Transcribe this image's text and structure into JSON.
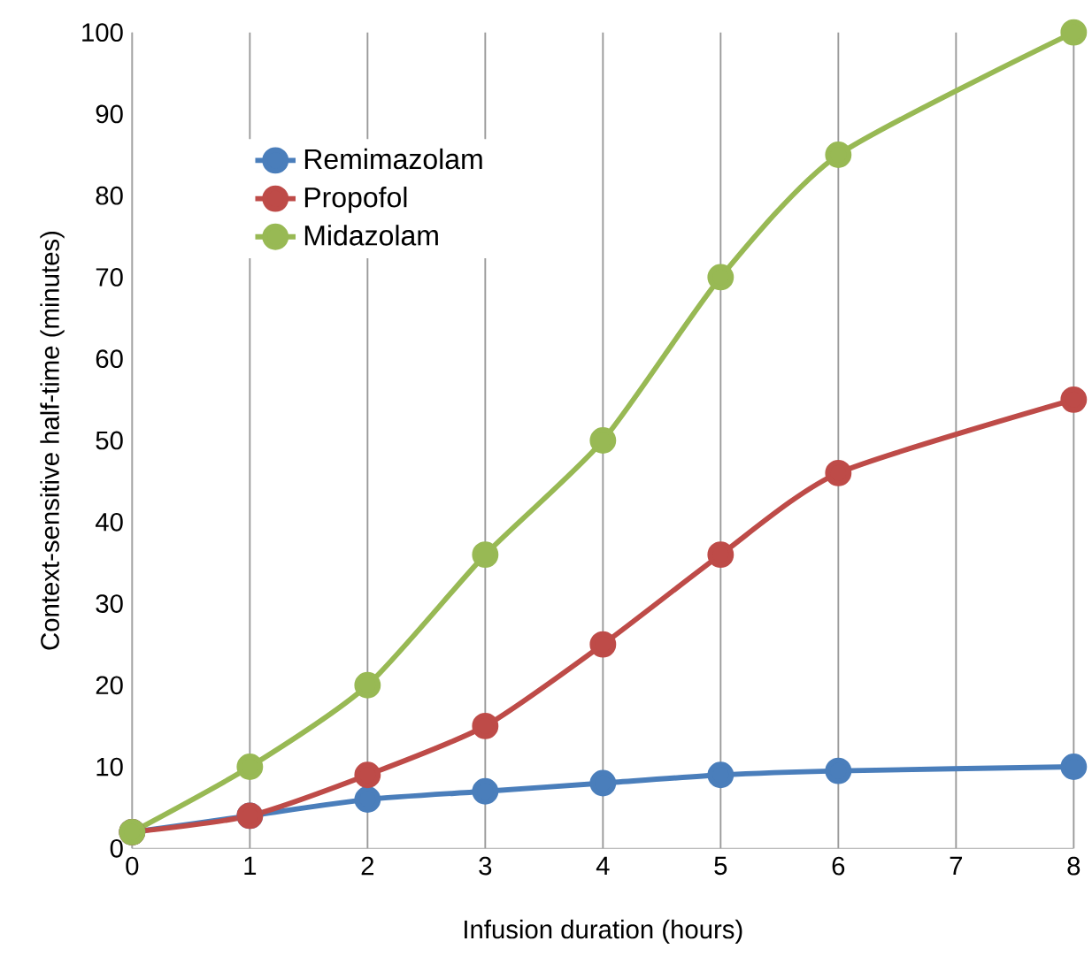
{
  "chart_data": {
    "type": "line",
    "xlabel": "Infusion duration (hours)",
    "ylabel": "Context-sensitive half-time (minutes)",
    "x": [
      0,
      1,
      2,
      3,
      4,
      5,
      6,
      8
    ],
    "series": [
      {
        "name": "Remimazolam",
        "color": "#4a7ebb",
        "values": [
          2,
          4,
          6,
          7,
          8,
          9,
          9.5,
          10
        ]
      },
      {
        "name": "Propofol",
        "color": "#be4b48",
        "values": [
          2,
          4,
          9,
          15,
          25,
          36,
          46,
          55
        ]
      },
      {
        "name": "Midazolam",
        "color": "#98b954",
        "values": [
          2,
          10,
          20,
          36,
          50,
          70,
          85,
          100
        ]
      }
    ],
    "xlim": [
      0,
      8
    ],
    "xticks": [
      0,
      1,
      2,
      3,
      4,
      5,
      6,
      7,
      8
    ],
    "ylim": [
      0,
      100
    ],
    "yticks": [
      0,
      10,
      20,
      30,
      40,
      50,
      60,
      70,
      80,
      90,
      100
    ],
    "grid": "x",
    "legend": "top left",
    "marker": "circle",
    "line_style": "solid"
  }
}
